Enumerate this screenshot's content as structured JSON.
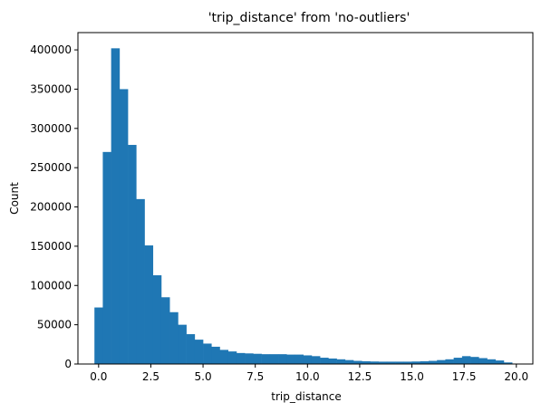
{
  "chart_data": {
    "type": "bar",
    "title": "'trip_distance' from 'no-outliers'",
    "xlabel": "trip_distance",
    "ylabel": "Count",
    "xlim": [
      -0.99,
      20.79
    ],
    "ylim": [
      0,
      422000
    ],
    "xticks": [
      0.0,
      2.5,
      5.0,
      7.5,
      10.0,
      12.5,
      15.0,
      17.5,
      20.0
    ],
    "xtick_labels": [
      "0.0",
      "2.5",
      "5.0",
      "7.5",
      "10.0",
      "12.5",
      "15.0",
      "17.5",
      "20.0"
    ],
    "yticks": [
      0,
      50000,
      100000,
      150000,
      200000,
      250000,
      300000,
      350000,
      400000
    ],
    "ytick_labels": [
      "0",
      "50000",
      "100000",
      "150000",
      "200000",
      "250000",
      "300000",
      "350000",
      "400000"
    ],
    "bin_start": -0.2,
    "bin_width": 0.4,
    "counts": [
      72000,
      270000,
      402000,
      350000,
      279000,
      210000,
      151000,
      113000,
      85000,
      66000,
      50000,
      38000,
      31000,
      26000,
      22000,
      18000,
      16000,
      14000,
      13500,
      13000,
      12500,
      12500,
      12500,
      12000,
      12000,
      11000,
      10000,
      8000,
      7000,
      6000,
      5000,
      4000,
      3500,
      3200,
      3000,
      3000,
      3000,
      3000,
      3200,
      3500,
      4000,
      5000,
      6000,
      8000,
      10000,
      9000,
      7500,
      6000,
      4500,
      2000
    ],
    "bar_color": "#1f77b4",
    "grid": false
  }
}
